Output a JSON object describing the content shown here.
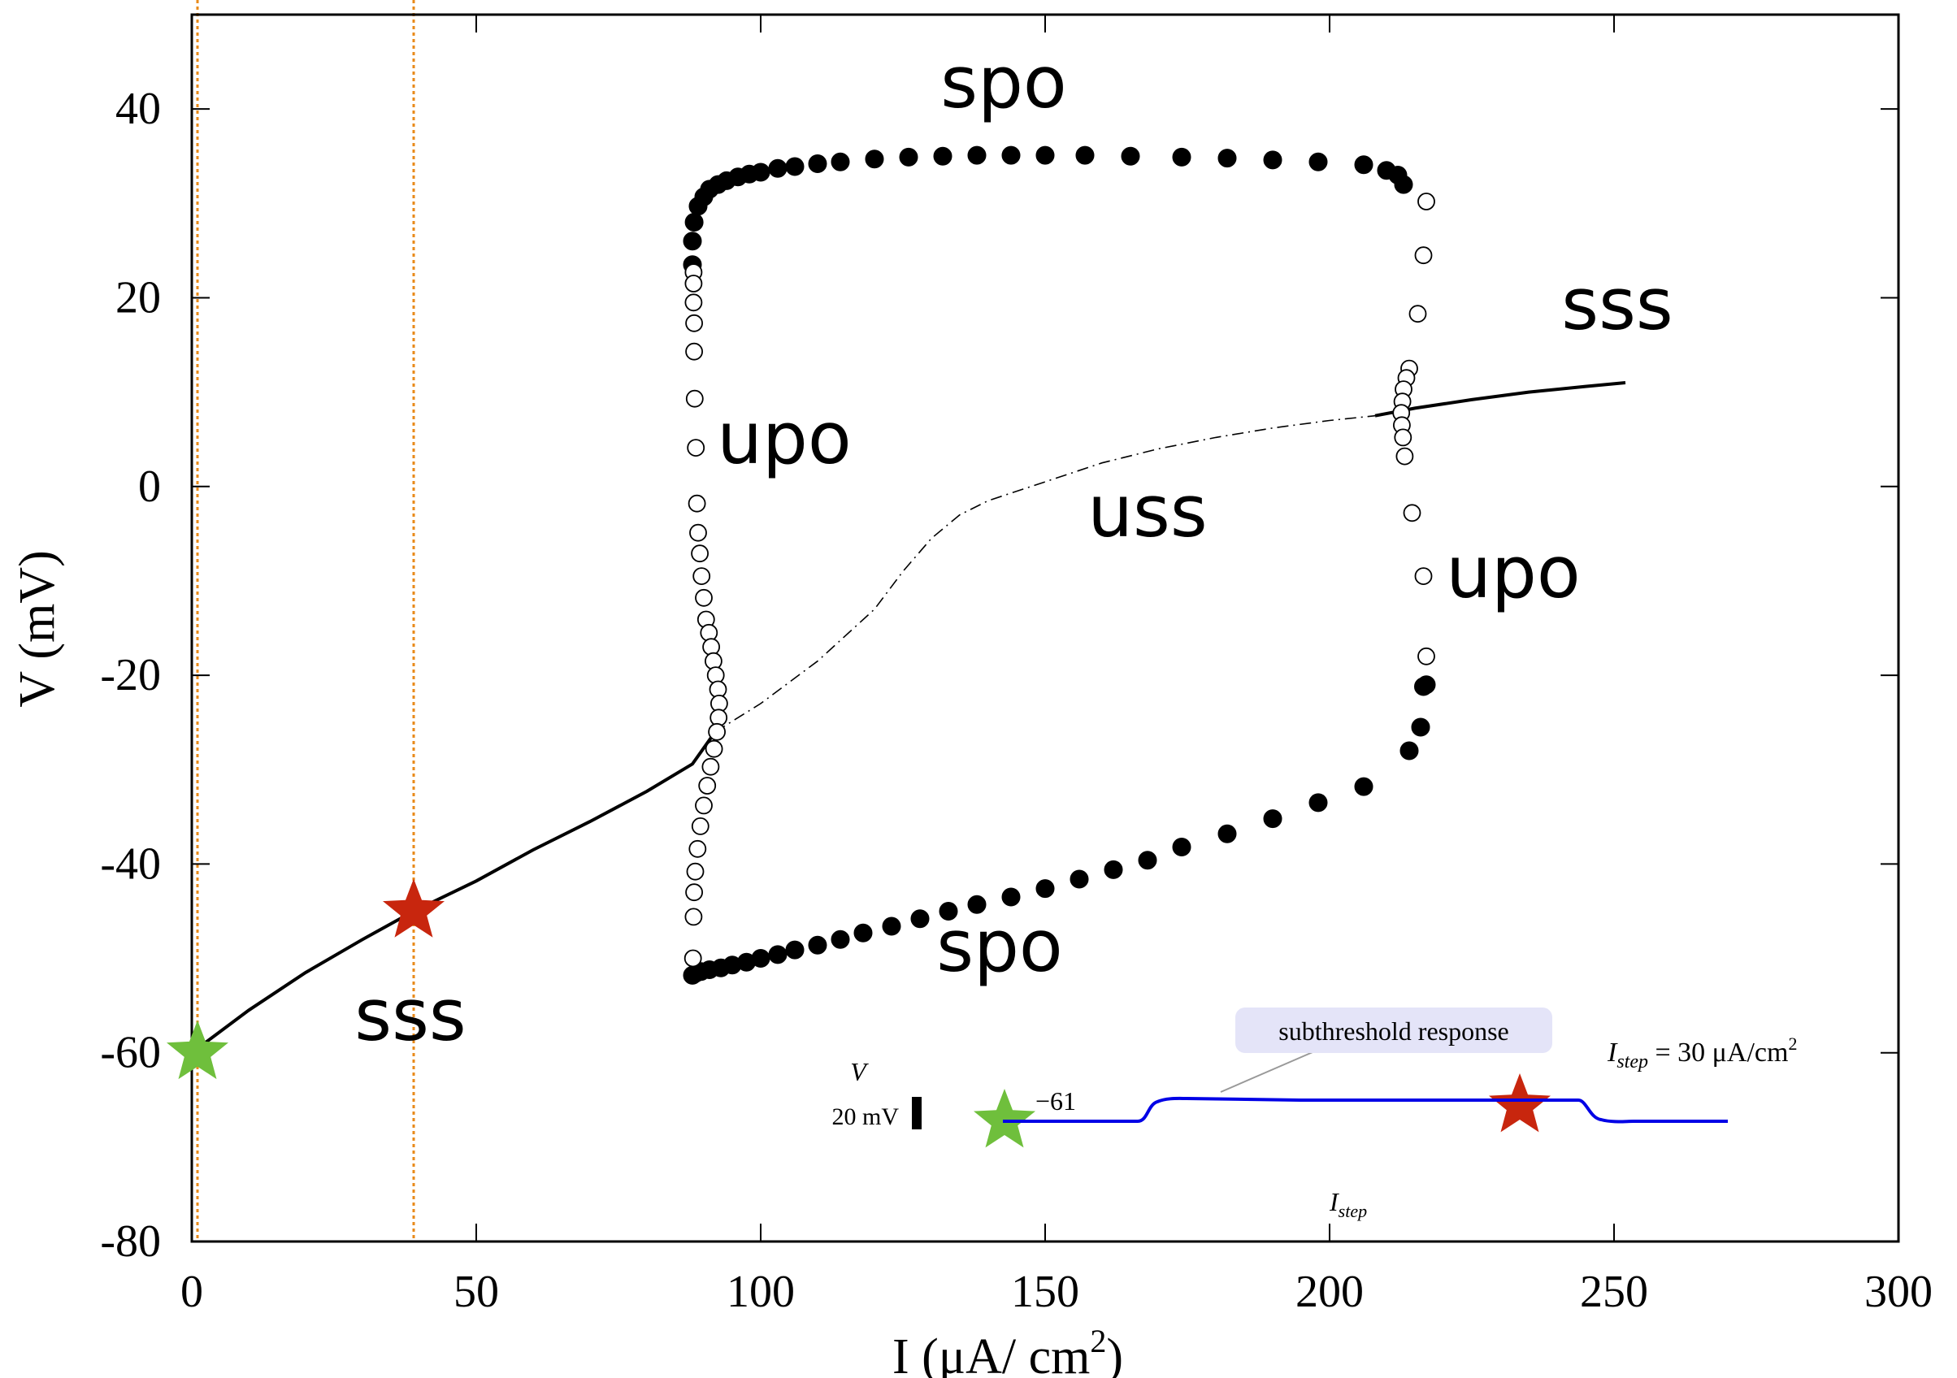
{
  "chart_data": {
    "type": "scatter",
    "xlabel": "I (μA/ cm2)",
    "xlabel_parts": {
      "text": "I (μA/ cm",
      "superscript": "2",
      "close": ")"
    },
    "ylabel": "V (mV)",
    "xlim": [
      0,
      300
    ],
    "ylim": [
      -80,
      50
    ],
    "x_ticks": [
      0,
      50,
      100,
      150,
      200,
      250,
      300
    ],
    "y_ticks": [
      -80,
      -60,
      -40,
      -20,
      0,
      20,
      40
    ],
    "x_tick_labels": [
      "0",
      "50",
      "100",
      "150",
      "200",
      "250",
      "300"
    ],
    "y_tick_labels": [
      "-80",
      "-60",
      "-40",
      "-20",
      "0",
      "20",
      "40"
    ],
    "grid": false,
    "legend": "none",
    "colors": {
      "axes": "#000000",
      "guide_lines": "#e88a1a",
      "inset_trace": "#0000e6",
      "green_star": "#6fbf3c",
      "red_star": "#c8260e",
      "annotation_box": "#e4e4f8"
    },
    "vertical_guides": [
      1,
      39
    ],
    "series": [
      {
        "kind": "stable-steady-state",
        "style": "solid",
        "x": [
          0,
          10,
          20,
          30,
          39,
          50,
          60,
          70,
          80,
          88,
          92
        ],
        "y": [
          -60,
          -55.5,
          -51.5,
          -48,
          -45,
          -41.8,
          -38.5,
          -35.5,
          -32.3,
          -29.4,
          -26
        ]
      },
      {
        "kind": "stable-steady-state",
        "style": "solid",
        "x": [
          208,
          215,
          225,
          235,
          245,
          252
        ],
        "y": [
          7.5,
          8.3,
          9.2,
          10,
          10.6,
          11
        ]
      },
      {
        "kind": "unstable-steady-state",
        "style": "dash-dot",
        "x": [
          92,
          100,
          110,
          120,
          125,
          130,
          135,
          140,
          150,
          160,
          170,
          180,
          190,
          200,
          208
        ],
        "y": [
          -26,
          -23,
          -18.5,
          -13,
          -9,
          -5.5,
          -3,
          -1.5,
          0.5,
          2.5,
          4,
          5.2,
          6.2,
          7,
          7.5
        ]
      },
      {
        "kind": "stable-periodic-orbit",
        "marker": "filled",
        "x": [
          88,
          88,
          88.3,
          89,
          90,
          91,
          92.5,
          94,
          96,
          98,
          100,
          103,
          106,
          110,
          114,
          120,
          126,
          132,
          138,
          144,
          150,
          157,
          165,
          174,
          182,
          190,
          198,
          206,
          210,
          212,
          213
        ],
        "y": [
          23.5,
          26,
          28,
          29.7,
          30.7,
          31.5,
          32,
          32.4,
          32.8,
          33.1,
          33.3,
          33.7,
          33.9,
          34.2,
          34.4,
          34.7,
          34.9,
          35,
          35.1,
          35.1,
          35.1,
          35.1,
          35,
          34.9,
          34.8,
          34.6,
          34.4,
          34.1,
          33.5,
          33,
          32
        ]
      },
      {
        "kind": "stable-periodic-orbit",
        "marker": "filled",
        "x": [
          88,
          88.5,
          89.5,
          91,
          93,
          95,
          97.5,
          100,
          103,
          106,
          110,
          114,
          118,
          123,
          128,
          133,
          138,
          144,
          150,
          156,
          162,
          168,
          174,
          182,
          190,
          198,
          206,
          214,
          216,
          216.5,
          217
        ],
        "y": [
          -51.8,
          -51.6,
          -51.4,
          -51.2,
          -51,
          -50.7,
          -50.4,
          -50,
          -49.6,
          -49.1,
          -48.6,
          -48,
          -47.3,
          -46.6,
          -45.8,
          -45,
          -44.3,
          -43.5,
          -42.6,
          -41.6,
          -40.6,
          -39.6,
          -38.2,
          -36.8,
          -35.2,
          -33.5,
          -31.8,
          -28,
          -25.5,
          -21.2,
          -21
        ]
      },
      {
        "kind": "unstable-periodic-orbit",
        "marker": "open",
        "x": [
          88.2,
          88.2,
          88.2,
          88.3,
          88.3,
          88.4,
          88.6,
          88.8,
          89,
          89.3,
          89.6,
          90,
          90.4,
          90.9,
          91.3,
          91.7,
          92.1,
          92.5,
          92.7,
          92.6,
          92.3,
          91.8,
          91.2,
          90.6,
          90,
          89.4,
          88.9,
          88.5,
          88.3,
          88.2,
          88.1
        ],
        "y": [
          22.7,
          21.5,
          19.5,
          17.3,
          14.3,
          9.3,
          4.1,
          -1.8,
          -4.9,
          -7.1,
          -9.5,
          -11.8,
          -14.1,
          -15.5,
          -17,
          -18.5,
          -20,
          -21.5,
          -23,
          -24.5,
          -26,
          -27.8,
          -29.7,
          -31.7,
          -33.8,
          -36,
          -38.4,
          -40.8,
          -43,
          -45.6,
          -50
        ]
      },
      {
        "kind": "unstable-periodic-orbit",
        "marker": "open",
        "x": [
          217,
          216.5,
          215.5,
          214,
          213.5,
          213,
          212.8,
          212.6,
          212.7,
          212.9,
          213.2,
          214.5,
          216.5,
          217
        ],
        "y": [
          30.2,
          24.5,
          18.3,
          12.5,
          11.5,
          10.3,
          9,
          7.8,
          6.5,
          5.2,
          3.2,
          -2.8,
          -9.5,
          -18
        ]
      }
    ],
    "region_labels": [
      "spo",
      "sss",
      "upo",
      "uss",
      "upo",
      "sss",
      "spo"
    ],
    "markers": [
      {
        "shape": "star",
        "color": "green",
        "x": 1,
        "y": -60
      },
      {
        "shape": "star",
        "color": "red",
        "x": 39,
        "y": -45
      }
    ],
    "inset": {
      "v_label": "V",
      "scale_label": "20 mV",
      "start_value": "−61",
      "annotation": "subthreshold response",
      "step_label": "I",
      "step_subscript": "step",
      "step_equation": {
        "I": "I",
        "sub": "step",
        "rest": " = 30 μA/cm",
        "sup": "2"
      }
    }
  }
}
